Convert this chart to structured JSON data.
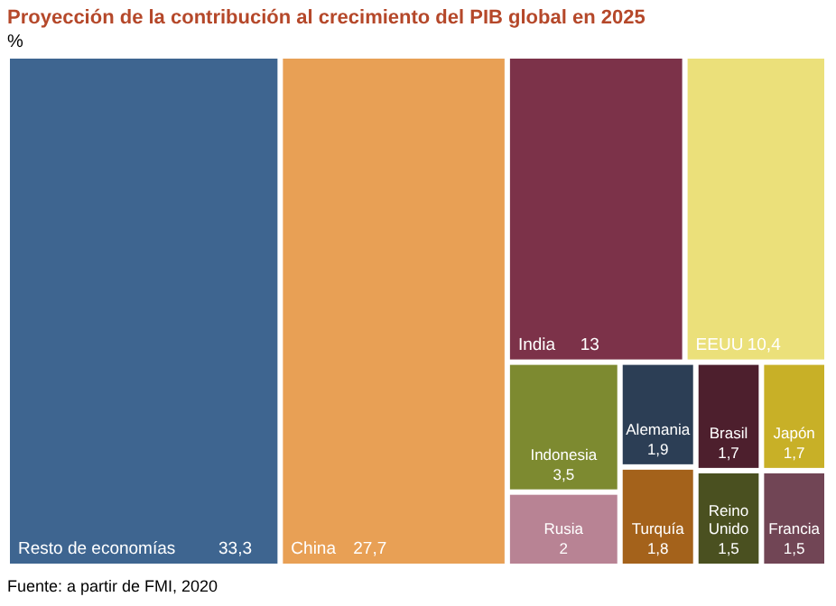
{
  "chart_data": {
    "type": "other",
    "title": "Proyección de la contribución al crecimiento del PIB global en 2025",
    "subtitle": "%",
    "categories": [
      "Resto de economías",
      "China",
      "India",
      "EEUU",
      "Indonesia",
      "Rusia",
      "Alemania",
      "Turquía",
      "Brasil",
      "Reino Unido",
      "Japón",
      "Francia"
    ],
    "values": [
      33.3,
      27.7,
      13,
      10.4,
      3.5,
      2,
      1.9,
      1.8,
      1.7,
      1.5,
      1.7,
      1.5
    ],
    "value_labels": [
      "33,3",
      "27,7",
      "13",
      "10,4",
      "3,5",
      "2",
      "1,9",
      "1,8",
      "1,7",
      "1,5",
      "1,7",
      "1,5"
    ],
    "colors": [
      "#3e6590",
      "#e8a055",
      "#7c3249",
      "#ebe07a",
      "#7d8a30",
      "#b88394",
      "#2c3e55",
      "#a4621b",
      "#4d1f2d",
      "#4a5020",
      "#c8b027",
      "#714555"
    ],
    "annotations": [
      "Fuente: a partir de FMI, 2020"
    ]
  }
}
